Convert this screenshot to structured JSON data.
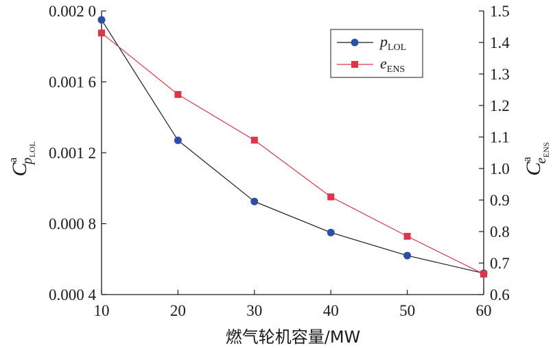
{
  "chart_data": {
    "type": "line",
    "x": [
      10,
      20,
      30,
      40,
      50,
      60
    ],
    "xlabel": "燃气轮机容量/MW",
    "xlim": [
      10,
      60
    ],
    "xticks": [
      "10",
      "20",
      "30",
      "40",
      "50",
      "60"
    ],
    "left_axis": {
      "label_main": "C",
      "label_sup": "a",
      "label_sub": "p",
      "label_subsub": "LOL",
      "ylim": [
        0.0004,
        0.002
      ],
      "ticks": [
        "0.000 4",
        "0.000 8",
        "0.001 2",
        "0.001 6",
        "0.002 0"
      ]
    },
    "right_axis": {
      "label_main": "C",
      "label_sup": "a",
      "label_sub": "e",
      "label_subsub": "ENS",
      "ylim": [
        0.6,
        1.5
      ],
      "ticks": [
        "0.6",
        "0.7",
        "0.8",
        "0.9",
        "1.0",
        "1.1",
        "1.2",
        "1.3",
        "1.4",
        "1.5"
      ]
    },
    "series": [
      {
        "name_main": "p",
        "name_sub": "LOL",
        "axis": "left",
        "marker": "circle",
        "color": "#2a4fa8",
        "line_color": "#1a1a1a",
        "values": [
          0.00195,
          0.00127,
          0.000925,
          0.00075,
          0.00062,
          0.00052
        ]
      },
      {
        "name_main": "e",
        "name_sub": "ENS",
        "axis": "right",
        "marker": "square",
        "color": "#e0344a",
        "line_color": "#e0344a",
        "values": [
          1.43,
          1.235,
          1.09,
          0.91,
          0.785,
          0.665
        ]
      }
    ],
    "grid": false,
    "legend_position": "top-right"
  }
}
